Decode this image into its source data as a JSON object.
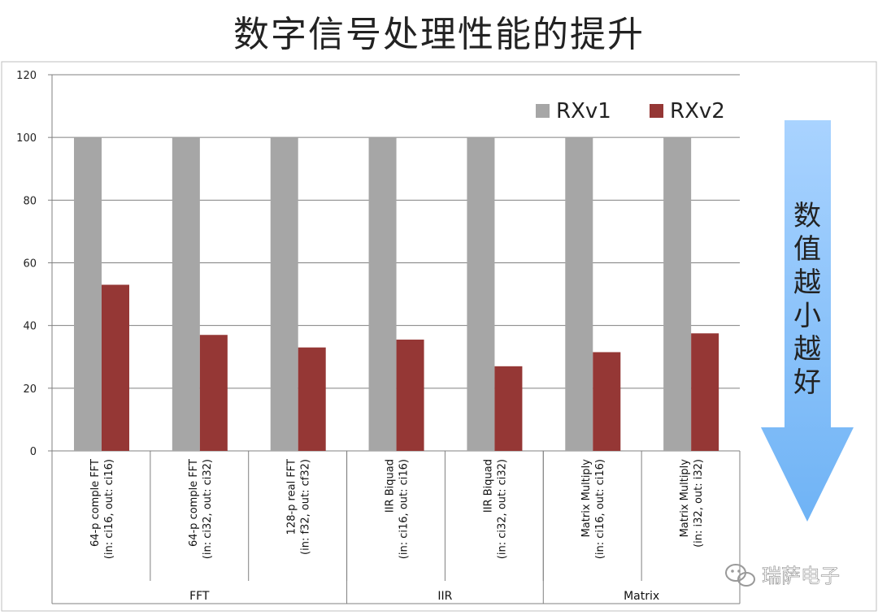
{
  "title": "数字信号处理性能的提升",
  "note": "数值越小越好",
  "watermark": "瑞萨电子",
  "colors": {
    "RXv1": "#a6a6a6",
    "RXv2": "#953735",
    "arrow_top": "#a9d3ff",
    "arrow_bottom": "#6fb3f5"
  },
  "chart_data": {
    "type": "bar",
    "title": "",
    "xlabel": "",
    "ylabel": "",
    "ylim": [
      0,
      120
    ],
    "yticks": [
      0,
      20,
      40,
      60,
      80,
      100,
      120
    ],
    "legend_position": "top-right",
    "categories": [
      [
        "64-p comple FFT",
        "(in: ci16, out: ci16)"
      ],
      [
        "64-p comple FFT",
        "(in: ci32, out: ci32)"
      ],
      [
        "128-p real FFT",
        "(in: f32, out: cf32)"
      ],
      [
        "IIR Biquad",
        "(in: ci16, out: ci16)"
      ],
      [
        "IIR Biquad",
        "(in: ci32, out: ci32)"
      ],
      [
        "Matrix Multiply",
        "(in: ci16, out: ci16)"
      ],
      [
        "Matrix Multiply",
        "(in: i32, out: i32)"
      ]
    ],
    "groups": [
      {
        "label": "FFT",
        "count": 3
      },
      {
        "label": "IIR",
        "count": 2
      },
      {
        "label": "Matrix",
        "count": 2
      }
    ],
    "series": [
      {
        "name": "RXv1",
        "values": [
          100,
          100,
          100,
          100,
          100,
          100,
          100
        ]
      },
      {
        "name": "RXv2",
        "values": [
          53,
          37,
          33,
          35.5,
          27,
          31.5,
          37.5
        ]
      }
    ]
  }
}
